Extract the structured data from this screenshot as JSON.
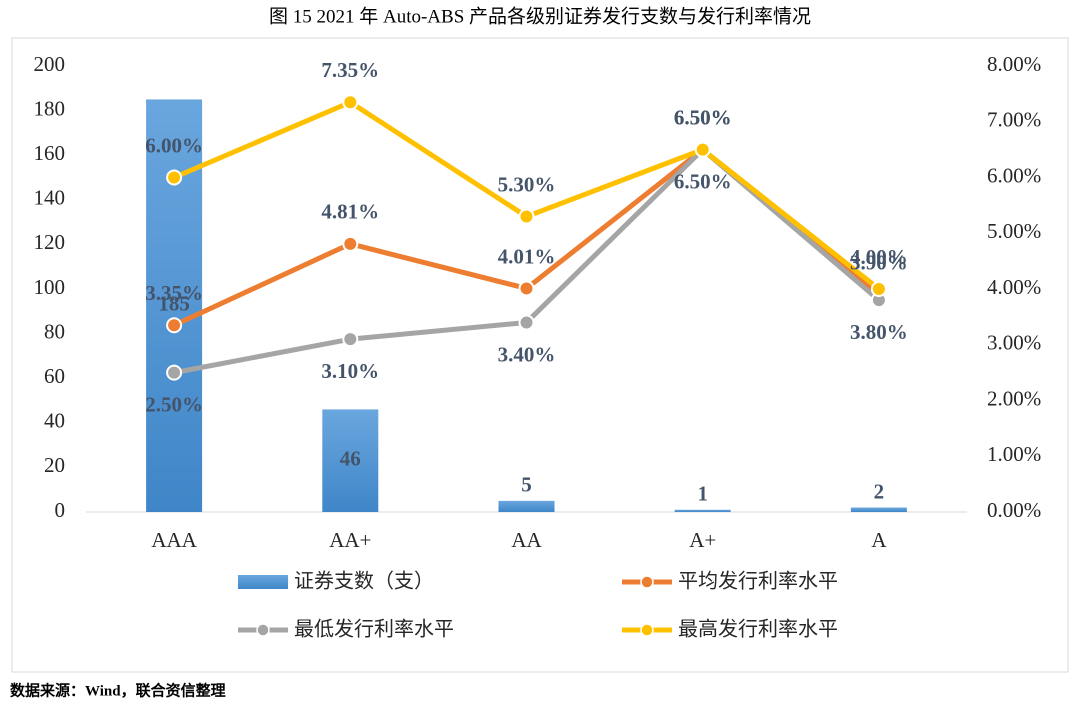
{
  "chart_data": {
    "type": "bar",
    "title": "图 15   2021 年 Auto-ABS 产品各级别证券发行支数与发行利率情况",
    "source": "数据来源：Wind，联合资信整理",
    "categories": [
      "AAA",
      "AA+",
      "AA",
      "A+",
      "A"
    ],
    "ylim": [
      0,
      200
    ],
    "yticks": [
      0,
      20,
      40,
      60,
      80,
      100,
      120,
      140,
      160,
      180,
      200
    ],
    "y2lim": [
      0,
      8
    ],
    "y2ticks": [
      {
        "value": 0,
        "label": "0.00%"
      },
      {
        "value": 1,
        "label": "1.00%"
      },
      {
        "value": 2,
        "label": "2.00%"
      },
      {
        "value": 3,
        "label": "3.00%"
      },
      {
        "value": 4,
        "label": "4.00%"
      },
      {
        "value": 5,
        "label": "5.00%"
      },
      {
        "value": 6,
        "label": "6.00%"
      },
      {
        "value": 7,
        "label": "7.00%"
      },
      {
        "value": 8,
        "label": "8.00%"
      }
    ],
    "series": [
      {
        "name": "证券支数（支）",
        "type": "bar",
        "color": "#5b9bd5",
        "values": [
          185,
          46,
          5,
          1,
          2
        ]
      },
      {
        "name": "平均发行利率水平",
        "type": "line",
        "axis": "y2",
        "color": "#ed7d31",
        "values": [
          3.35,
          4.81,
          4.01,
          6.5,
          3.9
        ],
        "value_labels": [
          "3.35%",
          "4.81%",
          "4.01%",
          "6.50%",
          "3.90%"
        ]
      },
      {
        "name": "最低发行利率水平",
        "type": "line",
        "axis": "y2",
        "color": "#a5a5a5",
        "values": [
          2.5,
          3.1,
          3.4,
          6.5,
          3.8
        ],
        "value_labels": [
          "2.50%",
          "3.10%",
          "3.40%",
          "6.50%",
          "3.80%"
        ]
      },
      {
        "name": "最高发行利率水平",
        "type": "line",
        "axis": "y2",
        "color": "#ffc000",
        "values": [
          6.0,
          7.35,
          5.3,
          6.5,
          4.0
        ],
        "value_labels": [
          "6.00%",
          "7.35%",
          "5.30%",
          "6.50%",
          "4.00%"
        ]
      }
    ]
  }
}
